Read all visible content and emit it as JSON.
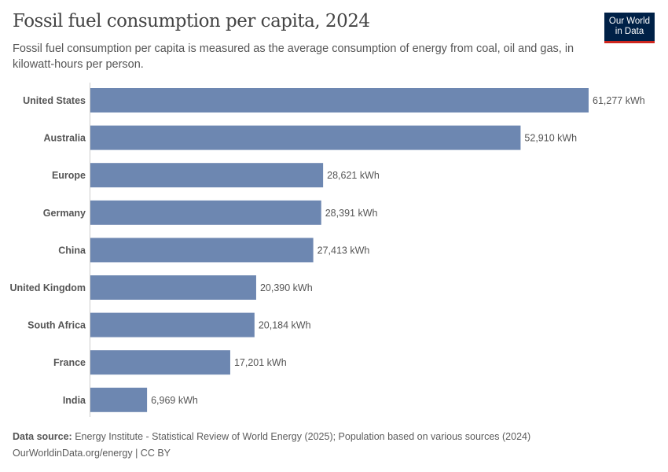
{
  "title": "Fossil fuel consumption per capita, 2024",
  "subtitle": "Fossil fuel consumption per capita is measured as the average consumption of energy from coal, oil and gas, in kilowatt-hours per person.",
  "logo": {
    "line1": "Our World",
    "line2": "in Data"
  },
  "footer": {
    "source_label": "Data source:",
    "source": "Energy Institute - Statistical Review of World Energy (2025); Population based on various sources (2024)",
    "link": "OurWorldinData.org/energy | CC BY"
  },
  "chart_data": {
    "type": "bar",
    "orientation": "horizontal",
    "categories": [
      "United States",
      "Australia",
      "Europe",
      "Germany",
      "China",
      "United Kingdom",
      "South Africa",
      "France",
      "India"
    ],
    "values": [
      61277,
      52910,
      28621,
      28391,
      27413,
      20390,
      20184,
      17201,
      6969
    ],
    "labels": [
      "61,277 kWh",
      "52,910 kWh",
      "28,621 kWh",
      "28,391 kWh",
      "27,413 kWh",
      "20,390 kWh",
      "20,184 kWh",
      "17,201 kWh",
      "6,969 kWh"
    ],
    "unit": "kWh",
    "bar_color": "#6d87b1",
    "grid": false
  }
}
